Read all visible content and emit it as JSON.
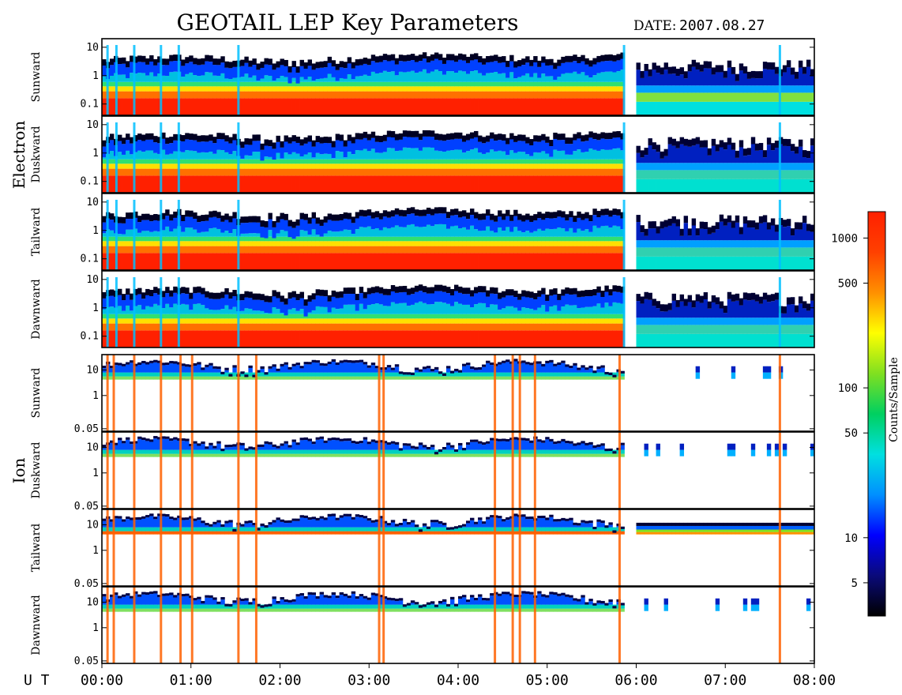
{
  "title": "GEOTAIL LEP Key Parameters",
  "date_label": "DATE:",
  "date_value": "2007.08.27",
  "x_axis": {
    "label": "U T",
    "ticks": [
      "00:00",
      "01:00",
      "02:00",
      "03:00",
      "04:00",
      "05:00",
      "06:00",
      "07:00",
      "08:00"
    ],
    "range_hours": [
      0,
      8
    ]
  },
  "groups": [
    {
      "name": "Electron"
    },
    {
      "name": "Ion"
    }
  ],
  "colorbar": {
    "label": "Counts/Sample",
    "scale": "log",
    "range": [
      3,
      1500
    ],
    "ticks": [
      "1000",
      "500",
      "100",
      "50",
      "10",
      "5"
    ],
    "tick_values": [
      1000,
      500,
      100,
      50,
      10,
      5
    ],
    "colors": [
      "#000000",
      "#0a0a7a",
      "#0000ff",
      "#0090ff",
      "#00e0e0",
      "#00d060",
      "#80e020",
      "#ffff00",
      "#ff9000",
      "#ff4000",
      "#ff2000"
    ]
  },
  "chart_data": {
    "type": "heatmap",
    "title": "GEOTAIL LEP Key Parameters",
    "xlabel": "U T",
    "x_range": [
      "00:00",
      "08:00"
    ],
    "y_scale": "log",
    "panels": [
      {
        "group": "Electron",
        "direction": "Sunward",
        "yticks": [
          "10",
          "1",
          "0.1"
        ],
        "ytick_values": [
          10,
          1,
          0.1
        ],
        "ylim": [
          0.04,
          20
        ]
      },
      {
        "group": "Electron",
        "direction": "Duskward",
        "yticks": [
          "10",
          "1",
          "0.1"
        ],
        "ytick_values": [
          10,
          1,
          0.1
        ],
        "ylim": [
          0.04,
          20
        ]
      },
      {
        "group": "Electron",
        "direction": "Tailward",
        "yticks": [
          "10",
          "1",
          "0.1"
        ],
        "ytick_values": [
          10,
          1,
          0.1
        ],
        "ylim": [
          0.04,
          20
        ]
      },
      {
        "group": "Electron",
        "direction": "Dawnward",
        "yticks": [
          "10",
          "1",
          "0.1"
        ],
        "ytick_values": [
          10,
          1,
          0.1
        ],
        "ylim": [
          0.04,
          20
        ]
      },
      {
        "group": "Ion",
        "direction": "Sunward",
        "yticks": [
          "10",
          "1",
          "0.05"
        ],
        "ytick_values": [
          10,
          1,
          0.05
        ],
        "ylim": [
          0.04,
          40
        ]
      },
      {
        "group": "Ion",
        "direction": "Duskward",
        "yticks": [
          "10",
          "1",
          "0.05"
        ],
        "ytick_values": [
          10,
          1,
          0.05
        ],
        "ylim": [
          0.04,
          40
        ]
      },
      {
        "group": "Ion",
        "direction": "Tailward",
        "yticks": [
          "10",
          "1",
          "0.05"
        ],
        "ytick_values": [
          10,
          1,
          0.05
        ],
        "ylim": [
          0.04,
          40
        ]
      },
      {
        "group": "Ion",
        "direction": "Dawnward",
        "yticks": [
          "10",
          "1",
          "0.05"
        ],
        "ytick_values": [
          10,
          1,
          0.05
        ],
        "ylim": [
          0.04,
          40
        ]
      }
    ],
    "data_gap_hours": [
      5.83,
      5.97
    ]
  }
}
